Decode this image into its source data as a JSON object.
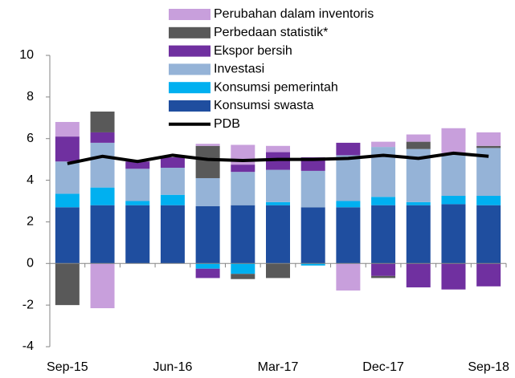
{
  "chart_data": {
    "type": "stacked_bar_line",
    "categories": [
      "Sep-15",
      null,
      null,
      "Jun-16",
      null,
      null,
      "Mar-17",
      null,
      null,
      "Dec-17",
      null,
      null,
      "Sep-18"
    ],
    "series": [
      {
        "name": "Perubahan dalam inventoris",
        "color": "#c89fdc",
        "values": [
          0.7,
          -2.15,
          0,
          0,
          0.1,
          0.95,
          0.3,
          0,
          -1.3,
          0.25,
          0.35,
          1.2,
          0.65
        ]
      },
      {
        "name": "Perbedaan statistik*",
        "color": "#595959",
        "values": [
          -2.0,
          1.0,
          0,
          0,
          1.55,
          -0.25,
          -0.7,
          0,
          0,
          -0.1,
          0.35,
          0,
          0.1
        ]
      },
      {
        "name": "Ekspor bersih",
        "color": "#7030a0",
        "values": [
          1.2,
          0.5,
          0.35,
          0.5,
          -0.45,
          0.35,
          0.85,
          0.65,
          0.6,
          -0.6,
          -1.15,
          -1.25,
          -1.1
        ]
      },
      {
        "name": "Investasi",
        "color": "#95b3d7",
        "values": [
          1.55,
          2.15,
          1.55,
          1.3,
          1.35,
          1.6,
          1.55,
          1.75,
          2.2,
          2.4,
          2.55,
          2.05,
          2.3
        ]
      },
      {
        "name": "Konsumsi pemerintah",
        "color": "#00b0f0",
        "values": [
          0.65,
          0.85,
          0.2,
          0.5,
          -0.25,
          -0.5,
          0.15,
          -0.1,
          0.3,
          0.4,
          0.15,
          0.4,
          0.45
        ]
      },
      {
        "name": "Konsumsi swasta",
        "color": "#1f4e9f",
        "values": [
          2.7,
          2.8,
          2.8,
          2.8,
          2.75,
          2.8,
          2.8,
          2.7,
          2.7,
          2.8,
          2.8,
          2.85,
          2.8
        ]
      },
      {
        "name": "PDB",
        "color": "#000000",
        "type": "line",
        "values": [
          4.8,
          5.15,
          4.9,
          5.2,
          5.0,
          4.95,
          5.0,
          5.0,
          5.05,
          5.2,
          5.05,
          5.3,
          5.15
        ]
      }
    ],
    "ylim": [
      -4,
      10
    ],
    "yticks": [
      -4,
      -2,
      0,
      2,
      4,
      6,
      8,
      10
    ]
  }
}
